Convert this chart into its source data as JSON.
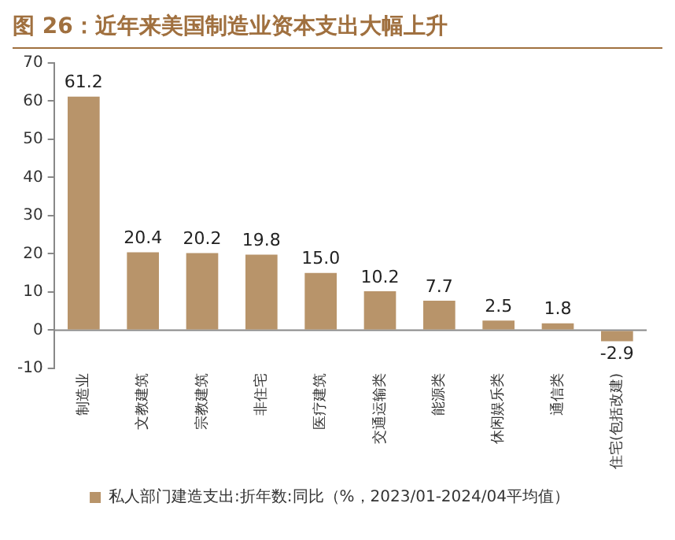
{
  "chart_data": {
    "type": "bar",
    "title": "图 26：近年来美国制造业资本支出大幅上升",
    "categories": [
      "制造业",
      "文教建筑",
      "宗教建筑",
      "非住宅",
      "医疗建筑",
      "交通运输类",
      "能源类",
      "休闲娱乐类",
      "通信类",
      "住宅(包括改建)"
    ],
    "series": [
      {
        "name": "私人部门建造支出:折年数:同比（%，2023/01-2024/04平均值）",
        "color": "#b8946a",
        "values": [
          61.2,
          20.4,
          20.2,
          19.8,
          15.0,
          10.2,
          7.7,
          2.5,
          1.8,
          -2.9
        ]
      }
    ],
    "value_labels": [
      "61.2",
      "20.4",
      "20.2",
      "19.8",
      "15.0",
      "10.2",
      "7.7",
      "2.5",
      "1.8",
      "-2.9"
    ],
    "ylim": [
      -10,
      70
    ],
    "yticks": [
      -10,
      0,
      10,
      20,
      30,
      40,
      50,
      60,
      70
    ],
    "ref_lines": [
      {
        "axis": "y",
        "value": 0,
        "color": "#888888"
      }
    ],
    "grid": false,
    "legend": "bottom"
  }
}
